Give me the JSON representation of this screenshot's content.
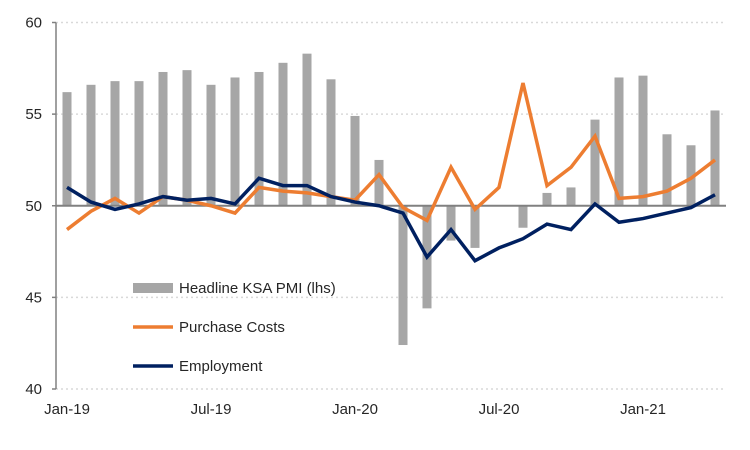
{
  "chart_data": {
    "type": "bar",
    "title": "",
    "xlabel": "",
    "ylabel": "",
    "ylim": [
      40,
      60
    ],
    "yticks": [
      40,
      45,
      50,
      55,
      60
    ],
    "baseline": 50,
    "grid": true,
    "legend_position": "bottom-left-inside",
    "x_tick_labels": [
      "Jan-19",
      "Jul-19",
      "Jan-20",
      "Jul-20",
      "Jan-21"
    ],
    "x_tick_label_indices": [
      0,
      6,
      12,
      18,
      24
    ],
    "categories": [
      "Jan-19",
      "Feb-19",
      "Mar-19",
      "Apr-19",
      "May-19",
      "Jun-19",
      "Jul-19",
      "Aug-19",
      "Sep-19",
      "Oct-19",
      "Nov-19",
      "Dec-19",
      "Jan-20",
      "Feb-20",
      "Mar-20",
      "Apr-20",
      "May-20",
      "Jun-20",
      "Jul-20",
      "Aug-20",
      "Sep-20",
      "Oct-20",
      "Nov-20",
      "Dec-20",
      "Jan-21",
      "Feb-21",
      "Mar-21",
      "Apr-21"
    ],
    "series": [
      {
        "name": "Headline KSA PMI (lhs)",
        "type": "bar",
        "color": "#A6A6A6",
        "values": [
          56.2,
          56.6,
          56.8,
          56.8,
          57.3,
          57.4,
          56.6,
          57.0,
          57.3,
          57.8,
          58.3,
          56.9,
          54.9,
          52.5,
          42.4,
          44.4,
          48.1,
          47.7,
          50.0,
          48.8,
          50.7,
          51.0,
          54.7,
          57.0,
          57.1,
          53.9,
          53.3,
          55.2
        ]
      },
      {
        "name": "Purchase Costs",
        "type": "line",
        "color": "#ED7D31",
        "values": [
          48.7,
          49.7,
          50.4,
          49.6,
          50.5,
          50.3,
          50.0,
          49.6,
          51.0,
          50.8,
          50.7,
          50.5,
          50.3,
          51.7,
          49.9,
          49.2,
          52.1,
          49.8,
          51.0,
          56.7,
          51.1,
          52.1,
          53.8,
          50.4,
          50.5,
          50.8,
          51.5,
          52.5
        ]
      },
      {
        "name": "Employment",
        "type": "line",
        "color": "#002060",
        "values": [
          51.0,
          50.2,
          49.8,
          50.1,
          50.5,
          50.3,
          50.4,
          50.1,
          51.5,
          51.1,
          51.1,
          50.5,
          50.2,
          50.0,
          49.6,
          47.2,
          48.7,
          47.0,
          47.7,
          48.2,
          49.0,
          48.7,
          50.1,
          49.1,
          49.3,
          49.6,
          49.9,
          50.6
        ]
      }
    ]
  }
}
